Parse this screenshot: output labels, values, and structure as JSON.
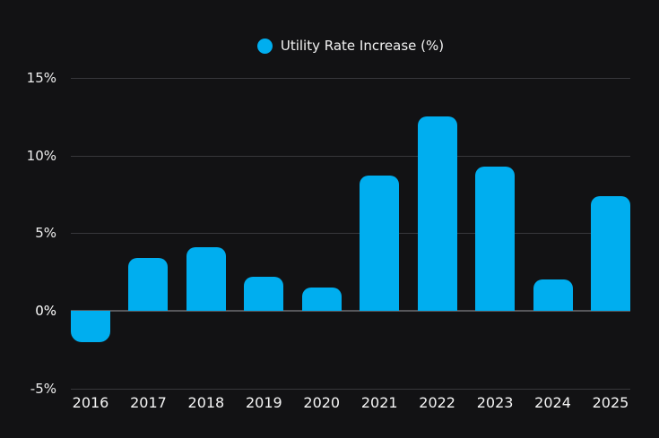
{
  "page": {
    "background": "#121214",
    "text_color": "#f2f2f2"
  },
  "legend": {
    "label": "Utility Rate Increase (%)",
    "marker_color": "#00AEEF"
  },
  "chart_data": {
    "type": "bar",
    "title": "Utility Rate Increase (%)",
    "series_name": "Utility Rate Increase (%)",
    "categories": [
      "2016",
      "2017",
      "2018",
      "2019",
      "2020",
      "2021",
      "2022",
      "2023",
      "2024",
      "2025"
    ],
    "values": [
      -2.0,
      3.4,
      4.1,
      2.2,
      1.5,
      8.7,
      12.5,
      9.3,
      2.0,
      7.4
    ],
    "xlabel": "",
    "ylabel": "",
    "ylim": [
      -5,
      15
    ],
    "y_ticks": [
      {
        "value": 15,
        "label": "15%"
      },
      {
        "value": 10,
        "label": "10%"
      },
      {
        "value": 5,
        "label": "5%"
      },
      {
        "value": 0,
        "label": "0%"
      },
      {
        "value": -5,
        "label": "-5%"
      }
    ],
    "grid": true,
    "zero_line": true,
    "legend_position": "top-center",
    "bar_color": "#00AEEF",
    "grid_color": "#37373b",
    "zero_line_color": "#56565a"
  }
}
